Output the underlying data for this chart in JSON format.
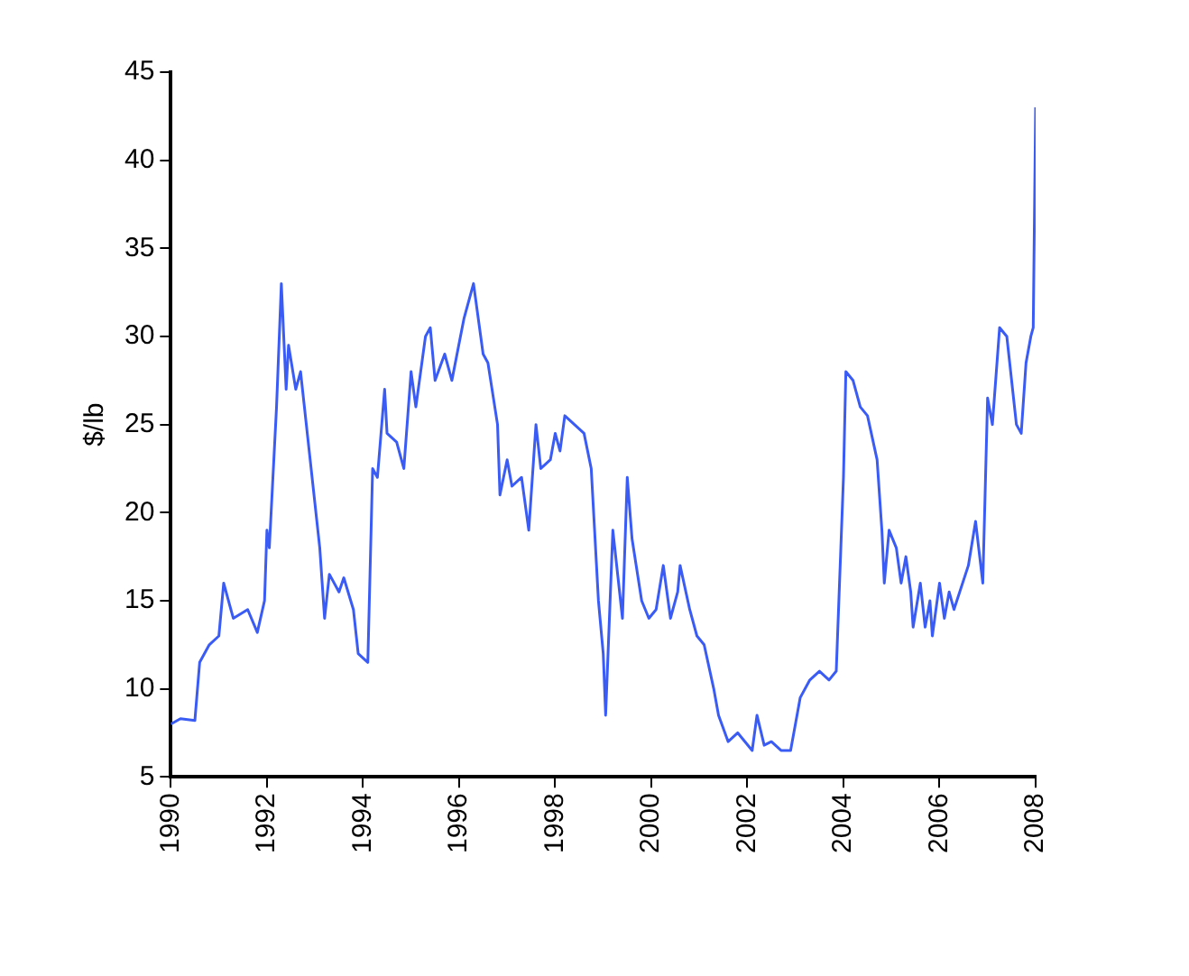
{
  "chart_data": {
    "type": "line",
    "ylabel": "$/lb",
    "xlim": [
      1990,
      2008
    ],
    "xticks": [
      1990,
      1992,
      1994,
      1996,
      1998,
      2000,
      2002,
      2004,
      2006,
      2008
    ],
    "ylim": [
      5,
      45
    ],
    "yticks": [
      5,
      10,
      15,
      20,
      25,
      30,
      35,
      40,
      45
    ],
    "grid": false,
    "legend": false,
    "marker": "none",
    "line_style": "solid",
    "series": [
      {
        "color": "#3a5cf5",
        "x": [
          1990.0,
          1990.2,
          1990.5,
          1990.6,
          1990.8,
          1991.0,
          1991.1,
          1991.3,
          1991.6,
          1991.8,
          1991.95,
          1992.0,
          1992.05,
          1992.2,
          1992.3,
          1992.4,
          1992.45,
          1992.6,
          1992.7,
          1992.9,
          1993.1,
          1993.2,
          1993.3,
          1993.5,
          1993.6,
          1993.8,
          1993.9,
          1994.1,
          1994.2,
          1994.3,
          1994.45,
          1994.5,
          1994.7,
          1994.85,
          1995.0,
          1995.1,
          1995.3,
          1995.4,
          1995.5,
          1995.7,
          1995.85,
          1996.1,
          1996.3,
          1996.5,
          1996.6,
          1996.8,
          1996.85,
          1997.0,
          1997.1,
          1997.3,
          1997.45,
          1997.6,
          1997.7,
          1997.9,
          1998.0,
          1998.1,
          1998.2,
          1998.4,
          1998.6,
          1998.75,
          1998.9,
          1999.0,
          1999.05,
          1999.2,
          1999.4,
          1999.5,
          1999.6,
          1999.8,
          1999.95,
          2000.1,
          2000.25,
          2000.4,
          2000.55,
          2000.6,
          2000.8,
          2000.95,
          2001.1,
          2001.3,
          2001.4,
          2001.6,
          2001.8,
          2001.95,
          2002.1,
          2002.2,
          2002.35,
          2002.5,
          2002.7,
          2002.9,
          2003.0,
          2003.1,
          2003.3,
          2003.5,
          2003.7,
          2003.85,
          2004.0,
          2004.05,
          2004.2,
          2004.35,
          2004.5,
          2004.7,
          2004.8,
          2004.85,
          2004.95,
          2005.1,
          2005.2,
          2005.3,
          2005.4,
          2005.45,
          2005.6,
          2005.7,
          2005.8,
          2005.85,
          2006.0,
          2006.1,
          2006.2,
          2006.3,
          2006.6,
          2006.75,
          2006.9,
          2007.0,
          2007.1,
          2007.25,
          2007.4,
          2007.6,
          2007.7,
          2007.8,
          2007.9,
          2007.95,
          2007.98,
          2008.0
        ],
        "values": [
          8,
          8.3,
          8.2,
          11.5,
          12.5,
          13,
          16,
          14,
          14.5,
          13.2,
          15,
          19,
          18,
          26,
          33,
          27,
          29.5,
          27,
          28,
          23,
          18,
          14,
          16.5,
          15.5,
          16.3,
          14.5,
          12,
          11.5,
          22.5,
          22,
          27,
          24.5,
          24,
          22.5,
          28,
          26,
          30,
          30.5,
          27.5,
          29,
          27.5,
          31,
          33,
          29,
          28.5,
          25,
          21,
          23,
          21.5,
          22,
          19,
          25,
          22.5,
          23,
          24.5,
          23.5,
          25.5,
          25,
          24.5,
          22.5,
          15,
          12,
          8.5,
          19,
          14,
          22,
          18.5,
          15,
          14,
          14.5,
          17,
          14,
          15.5,
          17,
          14.5,
          13,
          12.5,
          10,
          8.5,
          7,
          7.5,
          7,
          6.5,
          8.5,
          6.8,
          7,
          6.5,
          6.5,
          8,
          9.5,
          10.5,
          11,
          10.5,
          11,
          22,
          28,
          27.5,
          26,
          25.5,
          23,
          19,
          16,
          19,
          18,
          16,
          17.5,
          15.5,
          13.5,
          16,
          13.5,
          15,
          13,
          16,
          14,
          15.5,
          14.5,
          17,
          19.5,
          16,
          26.5,
          25,
          30.5,
          30,
          25,
          24.5,
          28.5,
          30,
          30.5,
          38,
          43
        ]
      }
    ]
  }
}
